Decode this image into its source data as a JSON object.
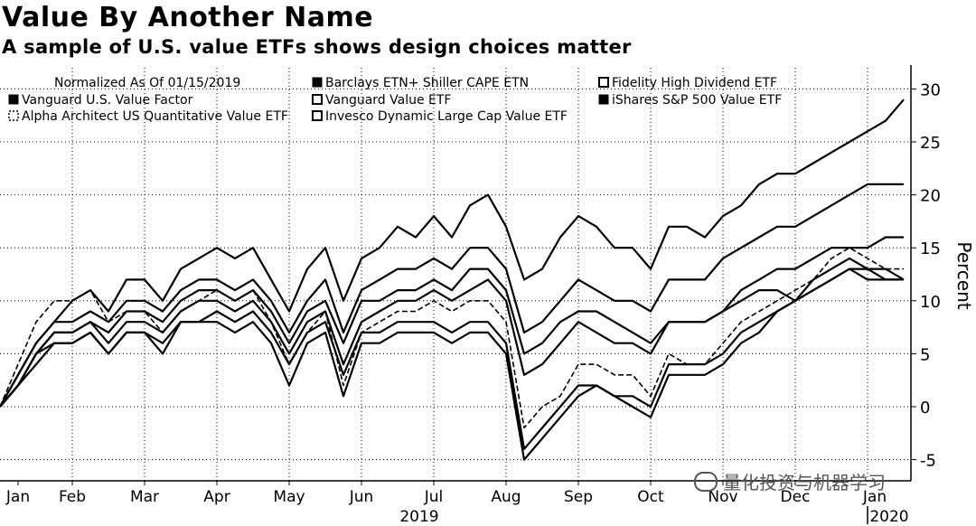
{
  "chart_data": {
    "type": "line",
    "title": "Value By Another Name",
    "subtitle": "A sample of U.S. value ETFs shows design choices matter",
    "normalization_note": "Normalized As Of 01/15/2019",
    "ylabel": "Percent",
    "ylim": [
      -7,
      32
    ],
    "yticks": [
      -5,
      0,
      5,
      10,
      15,
      20,
      25,
      30
    ],
    "xlim": [
      0,
      12.6
    ],
    "xticks": [
      {
        "label": "Jan",
        "x": 0.25
      },
      {
        "label": "Feb",
        "x": 1.0
      },
      {
        "label": "Mar",
        "x": 2.0
      },
      {
        "label": "Apr",
        "x": 3.0
      },
      {
        "label": "May",
        "x": 4.0
      },
      {
        "label": "Jun",
        "x": 5.0
      },
      {
        "label": "Jul",
        "x": 6.0
      },
      {
        "label": "Aug",
        "x": 7.0
      },
      {
        "label": "Sep",
        "x": 8.0
      },
      {
        "label": "Oct",
        "x": 9.0
      },
      {
        "label": "Nov",
        "x": 10.0
      },
      {
        "label": "Dec",
        "x": 11.0
      },
      {
        "label": "Jan",
        "x": 12.1
      }
    ],
    "year_labels": [
      {
        "label": "2019",
        "x": 5.8
      },
      {
        "label": "2020",
        "x": 12.3
      }
    ],
    "x_units": "months since Jan 1, 2019",
    "legend_position": "top-left",
    "series": [
      {
        "name": "Barclays ETN+ Shiller CAPE ETN",
        "marker": "filled",
        "dash": "solid",
        "x": [
          0,
          0.25,
          0.5,
          0.75,
          1,
          1.25,
          1.5,
          1.75,
          2,
          2.25,
          2.5,
          2.75,
          3,
          3.25,
          3.5,
          3.75,
          4,
          4.25,
          4.5,
          4.75,
          5,
          5.25,
          5.5,
          5.75,
          6,
          6.25,
          6.5,
          6.75,
          7,
          7.25,
          7.5,
          7.75,
          8,
          8.25,
          8.5,
          8.75,
          9,
          9.25,
          9.5,
          9.75,
          10,
          10.25,
          10.5,
          10.75,
          11,
          11.25,
          11.5,
          11.75,
          12,
          12.25,
          12.5
        ],
        "values": [
          0,
          3,
          6,
          8,
          10,
          11,
          9,
          12,
          12,
          10,
          13,
          14,
          15,
          14,
          15,
          12,
          9,
          13,
          15,
          10,
          14,
          15,
          17,
          16,
          18,
          16,
          19,
          20,
          17,
          12,
          13,
          16,
          18,
          17,
          15,
          15,
          13,
          17,
          17,
          16,
          18,
          19,
          21,
          22,
          22,
          23,
          24,
          25,
          26,
          27,
          29
        ]
      },
      {
        "name": "Fidelity High Dividend ETF",
        "marker": "open",
        "dash": "solid",
        "x": [
          0,
          0.25,
          0.5,
          0.75,
          1,
          1.25,
          1.5,
          1.75,
          2,
          2.25,
          2.5,
          2.75,
          3,
          3.25,
          3.5,
          3.75,
          4,
          4.25,
          4.5,
          4.75,
          5,
          5.25,
          5.5,
          5.75,
          6,
          6.25,
          6.5,
          6.75,
          7,
          7.25,
          7.5,
          7.75,
          8,
          8.25,
          8.5,
          8.75,
          9,
          9.25,
          9.5,
          9.75,
          10,
          10.25,
          10.5,
          10.75,
          11,
          11.25,
          11.5,
          11.75,
          12,
          12.25,
          12.5
        ],
        "values": [
          0,
          2,
          5,
          7,
          7,
          8,
          7,
          9,
          9,
          8,
          10,
          11,
          11,
          10,
          11,
          9,
          6,
          9,
          10,
          6,
          10,
          10,
          11,
          11,
          12,
          11,
          13,
          13,
          11,
          5,
          6,
          8,
          9,
          9,
          8,
          7,
          6,
          8,
          8,
          8,
          9,
          10,
          11,
          11,
          10,
          12,
          13,
          14,
          13,
          12,
          12
        ]
      },
      {
        "name": "Vanguard U.S. Value Factor",
        "marker": "filled",
        "dash": "solid",
        "x": [
          0,
          0.25,
          0.5,
          0.75,
          1,
          1.25,
          1.5,
          1.75,
          2,
          2.25,
          2.5,
          2.75,
          3,
          3.25,
          3.5,
          3.75,
          4,
          4.25,
          4.5,
          4.75,
          5,
          5.25,
          5.5,
          5.75,
          6,
          6.25,
          6.5,
          6.75,
          7,
          7.25,
          7.5,
          7.75,
          8,
          8.25,
          8.5,
          8.75,
          9,
          9.25,
          9.5,
          9.75,
          10,
          10.25,
          10.5,
          10.75,
          11,
          11.25,
          11.5,
          11.75,
          12,
          12.25,
          12.5
        ],
        "values": [
          0,
          2,
          5,
          6,
          6,
          7,
          5,
          7,
          7,
          5,
          8,
          8,
          8,
          7,
          8,
          6,
          2,
          6,
          7,
          1,
          6,
          6,
          7,
          7,
          7,
          6,
          7,
          7,
          5,
          -5,
          -3,
          -1,
          1,
          2,
          1,
          0,
          -1,
          3,
          3,
          3,
          4,
          6,
          7,
          9,
          10,
          11,
          12,
          13,
          12,
          12,
          12
        ]
      },
      {
        "name": "Vanguard Value ETF",
        "marker": "open",
        "dash": "solid",
        "x": [
          0,
          0.25,
          0.5,
          0.75,
          1,
          1.25,
          1.5,
          1.75,
          2,
          2.25,
          2.5,
          2.75,
          3,
          3.25,
          3.5,
          3.75,
          4,
          4.25,
          4.5,
          4.75,
          5,
          5.25,
          5.5,
          5.75,
          6,
          6.25,
          6.5,
          6.75,
          7,
          7.25,
          7.5,
          7.75,
          8,
          8.25,
          8.5,
          8.75,
          9,
          9.25,
          9.5,
          9.75,
          10,
          10.25,
          10.5,
          10.75,
          11,
          11.25,
          11.5,
          11.75,
          12,
          12.25,
          12.5
        ],
        "values": [
          0,
          3,
          6,
          8,
          8,
          9,
          8,
          10,
          10,
          9,
          11,
          12,
          12,
          11,
          12,
          10,
          7,
          10,
          12,
          7,
          11,
          12,
          13,
          13,
          14,
          13,
          15,
          15,
          13,
          7,
          8,
          10,
          12,
          11,
          10,
          10,
          9,
          12,
          12,
          12,
          14,
          15,
          16,
          17,
          17,
          18,
          19,
          20,
          21,
          21,
          21
        ]
      },
      {
        "name": "iShares S&P 500 Value ETF",
        "marker": "filled",
        "dash": "solid",
        "x": [
          0,
          0.25,
          0.5,
          0.75,
          1,
          1.25,
          1.5,
          1.75,
          2,
          2.25,
          2.5,
          2.75,
          3,
          3.25,
          3.5,
          3.75,
          4,
          4.25,
          4.5,
          4.75,
          5,
          5.25,
          5.5,
          5.75,
          6,
          6.25,
          6.5,
          6.75,
          7,
          7.25,
          7.5,
          7.75,
          8,
          8.25,
          8.5,
          8.75,
          9,
          9.25,
          9.5,
          9.75,
          10,
          10.25,
          10.5,
          10.75,
          11,
          11.25,
          11.5,
          11.75,
          12,
          12.25,
          12.5
        ],
        "values": [
          0,
          2,
          5,
          7,
          7,
          8,
          6,
          8,
          8,
          7,
          9,
          10,
          10,
          9,
          10,
          8,
          5,
          8,
          9,
          4,
          8,
          9,
          10,
          10,
          11,
          10,
          11,
          12,
          10,
          3,
          4,
          6,
          8,
          7,
          6,
          6,
          5,
          8,
          8,
          8,
          9,
          11,
          12,
          13,
          13,
          14,
          15,
          15,
          15,
          16,
          16
        ]
      },
      {
        "name": "Alpha Architect US Quantitative Value ETF",
        "marker": "dashed",
        "dash": "dashed",
        "x": [
          0,
          0.25,
          0.5,
          0.75,
          1,
          1.25,
          1.5,
          1.75,
          2,
          2.25,
          2.5,
          2.75,
          3,
          3.25,
          3.5,
          3.75,
          4,
          4.25,
          4.5,
          4.75,
          5,
          5.25,
          5.5,
          5.75,
          6,
          6.25,
          6.5,
          6.75,
          7,
          7.25,
          7.5,
          7.75,
          8,
          8.25,
          8.5,
          8.75,
          9,
          9.25,
          9.5,
          9.75,
          10,
          10.25,
          10.5,
          10.75,
          11,
          11.25,
          11.5,
          11.75,
          12,
          12.25,
          12.5
        ],
        "values": [
          0,
          4,
          8,
          10,
          10,
          11,
          8,
          9,
          9,
          7,
          9,
          10,
          11,
          10,
          11,
          8,
          4,
          7,
          9,
          2,
          7,
          8,
          9,
          9,
          10,
          9,
          10,
          10,
          8,
          -2,
          0,
          1,
          4,
          4,
          3,
          3,
          1,
          5,
          4,
          4,
          6,
          8,
          9,
          10,
          11,
          12,
          14,
          15,
          14,
          13,
          13
        ]
      },
      {
        "name": "Invesco Dynamic Large Cap Value ETF",
        "marker": "open",
        "dash": "solid",
        "x": [
          0,
          0.25,
          0.5,
          0.75,
          1,
          1.25,
          1.5,
          1.75,
          2,
          2.25,
          2.5,
          2.75,
          3,
          3.25,
          3.5,
          3.75,
          4,
          4.25,
          4.5,
          4.75,
          5,
          5.25,
          5.5,
          5.75,
          6,
          6.25,
          6.5,
          6.75,
          7,
          7.25,
          7.5,
          7.75,
          8,
          8.25,
          8.5,
          8.75,
          9,
          9.25,
          9.5,
          9.75,
          10,
          10.25,
          10.5,
          10.75,
          11,
          11.25,
          11.5,
          11.75,
          12,
          12.25,
          12.5
        ],
        "values": [
          0,
          2,
          4,
          6,
          6,
          7,
          5,
          7,
          7,
          6,
          8,
          8,
          9,
          8,
          9,
          7,
          4,
          7,
          8,
          3,
          7,
          7,
          8,
          8,
          8,
          7,
          8,
          8,
          6,
          -4,
          -2,
          0,
          2,
          2,
          1,
          1,
          0,
          4,
          4,
          4,
          5,
          7,
          8,
          9,
          10,
          11,
          12,
          13,
          13,
          13,
          12
        ]
      }
    ]
  },
  "watermark": {
    "text": "量化投资与机器学习"
  }
}
